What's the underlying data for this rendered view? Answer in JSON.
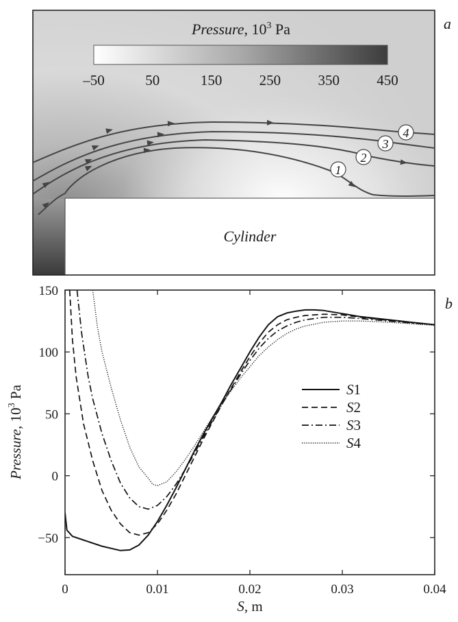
{
  "panel_a": {
    "letter": "a",
    "colorbar": {
      "title_italic": "Pressure",
      "title_rest": ", 10",
      "title_sup": "3",
      "title_unit": " Pa",
      "ticks": [
        "–50",
        "50",
        "150",
        "250",
        "350",
        "450"
      ],
      "range": [
        -50,
        450
      ]
    },
    "body_label": "Cylinder",
    "streamline_labels": [
      "1",
      "2",
      "3",
      "4"
    ]
  },
  "panel_b": {
    "letter": "b"
  },
  "chart_data": {
    "type": "line",
    "xlabel_italic": "S",
    "xlabel_rest": ", m",
    "ylabel_italic": "Pressure",
    "ylabel_rest": ", 10",
    "ylabel_sup": "3",
    "ylabel_unit": " Pa",
    "xlim": [
      0,
      0.04
    ],
    "ylim": [
      -80,
      150
    ],
    "x_ticks": [
      0,
      0.01,
      0.02,
      0.03,
      0.04
    ],
    "x_tick_labels": [
      "0",
      "0.01",
      "0.02",
      "0.03",
      "0.04"
    ],
    "y_ticks": [
      -50,
      0,
      50,
      100,
      150
    ],
    "y_tick_labels": [
      "−50",
      "0",
      "50",
      "100",
      "150"
    ],
    "legend_position": "right-center",
    "series": [
      {
        "name": "S1",
        "style": "solid",
        "points": [
          [
            0,
            -30
          ],
          [
            0.0002,
            -44
          ],
          [
            0.0008,
            -49
          ],
          [
            0.002,
            -52
          ],
          [
            0.004,
            -57
          ],
          [
            0.006,
            -60.5
          ],
          [
            0.007,
            -60
          ],
          [
            0.008,
            -56
          ],
          [
            0.009,
            -48
          ],
          [
            0.01,
            -37
          ],
          [
            0.011,
            -24
          ],
          [
            0.012,
            -10
          ],
          [
            0.013,
            5
          ],
          [
            0.014,
            20
          ],
          [
            0.015,
            34
          ],
          [
            0.016,
            47
          ],
          [
            0.017,
            60
          ],
          [
            0.018,
            74
          ],
          [
            0.019,
            87
          ],
          [
            0.02,
            100
          ],
          [
            0.021,
            112
          ],
          [
            0.022,
            122
          ],
          [
            0.023,
            128.5
          ],
          [
            0.024,
            131.5
          ],
          [
            0.025,
            133
          ],
          [
            0.026,
            134
          ],
          [
            0.027,
            134
          ],
          [
            0.028,
            133.5
          ],
          [
            0.03,
            131
          ],
          [
            0.032,
            128.5
          ],
          [
            0.035,
            126
          ],
          [
            0.038,
            123.5
          ],
          [
            0.04,
            122
          ]
        ]
      },
      {
        "name": "S2",
        "style": "dashed",
        "points": [
          [
            0.0005,
            150
          ],
          [
            0.0008,
            110
          ],
          [
            0.0012,
            80
          ],
          [
            0.002,
            42
          ],
          [
            0.003,
            12
          ],
          [
            0.004,
            -12
          ],
          [
            0.005,
            -28
          ],
          [
            0.006,
            -39
          ],
          [
            0.007,
            -46
          ],
          [
            0.008,
            -48
          ],
          [
            0.009,
            -46
          ],
          [
            0.01,
            -39
          ],
          [
            0.011,
            -28
          ],
          [
            0.012,
            -15
          ],
          [
            0.013,
            0
          ],
          [
            0.014,
            15
          ],
          [
            0.015,
            30
          ],
          [
            0.016,
            44
          ],
          [
            0.017,
            58
          ],
          [
            0.018,
            71
          ],
          [
            0.019,
            84
          ],
          [
            0.02,
            96
          ],
          [
            0.021,
            107
          ],
          [
            0.022,
            116
          ],
          [
            0.023,
            122
          ],
          [
            0.024,
            126
          ],
          [
            0.025,
            128
          ],
          [
            0.026,
            129.5
          ],
          [
            0.028,
            130.5
          ],
          [
            0.03,
            130
          ],
          [
            0.032,
            128
          ],
          [
            0.035,
            125.5
          ],
          [
            0.038,
            123.5
          ],
          [
            0.04,
            122
          ]
        ]
      },
      {
        "name": "S3",
        "style": "dashdot",
        "points": [
          [
            0.0013,
            150
          ],
          [
            0.0018,
            115
          ],
          [
            0.0025,
            80
          ],
          [
            0.003,
            62
          ],
          [
            0.004,
            34
          ],
          [
            0.005,
            12
          ],
          [
            0.006,
            -6
          ],
          [
            0.007,
            -18
          ],
          [
            0.008,
            -25
          ],
          [
            0.009,
            -27
          ],
          [
            0.01,
            -24
          ],
          [
            0.011,
            -17
          ],
          [
            0.012,
            -7
          ],
          [
            0.013,
            5
          ],
          [
            0.014,
            18
          ],
          [
            0.015,
            32
          ],
          [
            0.016,
            45
          ],
          [
            0.017,
            58
          ],
          [
            0.018,
            70
          ],
          [
            0.019,
            82
          ],
          [
            0.02,
            93
          ],
          [
            0.021,
            103
          ],
          [
            0.022,
            111
          ],
          [
            0.023,
            117
          ],
          [
            0.024,
            121
          ],
          [
            0.025,
            124
          ],
          [
            0.026,
            126
          ],
          [
            0.028,
            128
          ],
          [
            0.03,
            128
          ],
          [
            0.032,
            127
          ],
          [
            0.035,
            125
          ],
          [
            0.038,
            123
          ],
          [
            0.04,
            122
          ]
        ]
      },
      {
        "name": "S4",
        "style": "dotted",
        "points": [
          [
            0.003,
            150
          ],
          [
            0.0035,
            120
          ],
          [
            0.004,
            100
          ],
          [
            0.005,
            71
          ],
          [
            0.006,
            45
          ],
          [
            0.007,
            23
          ],
          [
            0.008,
            7
          ],
          [
            0.009,
            -2
          ],
          [
            0.0095,
            -7
          ],
          [
            0.01,
            -8
          ],
          [
            0.011,
            -5
          ],
          [
            0.012,
            3
          ],
          [
            0.013,
            13
          ],
          [
            0.014,
            24
          ],
          [
            0.015,
            36
          ],
          [
            0.016,
            48
          ],
          [
            0.017,
            59
          ],
          [
            0.018,
            69
          ],
          [
            0.019,
            79
          ],
          [
            0.02,
            88
          ],
          [
            0.021,
            97
          ],
          [
            0.022,
            104
          ],
          [
            0.023,
            110
          ],
          [
            0.024,
            115
          ],
          [
            0.025,
            118.5
          ],
          [
            0.026,
            121
          ],
          [
            0.028,
            124
          ],
          [
            0.03,
            125
          ],
          [
            0.032,
            125
          ],
          [
            0.035,
            124
          ],
          [
            0.038,
            122.5
          ],
          [
            0.04,
            121.5
          ]
        ]
      }
    ]
  }
}
